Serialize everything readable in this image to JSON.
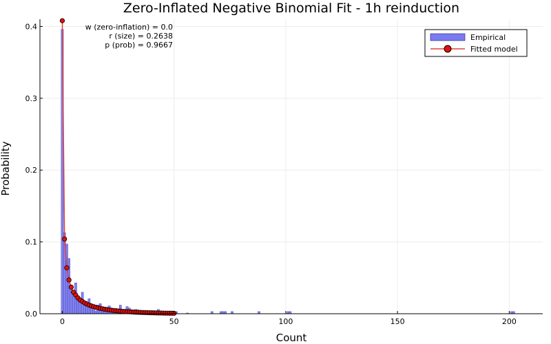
{
  "colors": {
    "empirical_fill": "#7b7bf0",
    "empirical_stroke": "#3a3aa8",
    "fitted_line": "#e0403a",
    "fitted_marker": "#e8100a",
    "grid": "#ececec",
    "axis": "#000000"
  },
  "chart_data": {
    "type": "bar",
    "title": "Zero-Inflated Negative Binomial Fit - 1h reinduction",
    "xlabel": "Count",
    "ylabel": "Probability",
    "xlim": [
      -10,
      215
    ],
    "ylim": [
      0,
      0.41
    ],
    "x_ticks": [
      0,
      50,
      100,
      150,
      200
    ],
    "x_tick_labels": [
      "0",
      "50",
      "100",
      "150",
      "200"
    ],
    "y_ticks": [
      0,
      0.1,
      0.2,
      0.3,
      0.4
    ],
    "y_tick_labels": [
      "0.0",
      "0.1",
      "0.2",
      "0.3",
      "0.4"
    ],
    "grid": true,
    "legend_position": "top-right",
    "annotation": [
      "w (zero-inflation) = 0.0",
      "r (size) = 0.2638",
      "p (prob) = 0.9667"
    ],
    "series": [
      {
        "name": "Empirical",
        "kind": "histogram",
        "x": [
          0,
          1,
          2,
          3,
          4,
          5,
          6,
          7,
          8,
          9,
          10,
          11,
          12,
          13,
          14,
          15,
          16,
          17,
          18,
          19,
          20,
          21,
          22,
          23,
          24,
          25,
          26,
          27,
          28,
          29,
          30,
          31,
          32,
          33,
          34,
          35,
          36,
          37,
          38,
          39,
          40,
          41,
          42,
          43,
          44,
          45,
          46,
          47,
          48,
          50,
          51,
          56,
          67,
          71,
          72,
          73,
          76,
          88,
          101,
          102,
          201,
          202
        ],
        "values": [
          0.396,
          0.113,
          0.097,
          0.077,
          0.036,
          0.031,
          0.043,
          0.025,
          0.022,
          0.03,
          0.014,
          0.014,
          0.021,
          0.008,
          0.006,
          0.004,
          0.012,
          0.014,
          0.007,
          0.008,
          0.009,
          0.011,
          0.006,
          0.005,
          0.005,
          0.006,
          0.012,
          0.004,
          0.003,
          0.01,
          0.008,
          0.005,
          0.003,
          0.006,
          0.004,
          0.002,
          0.003,
          0.004,
          0.002,
          0.002,
          0.002,
          0.003,
          0.004,
          0.006,
          0.002,
          0.002,
          0.002,
          0.002,
          0.003,
          0.001,
          0.003,
          0.001,
          0.003,
          0.003,
          0.003,
          0.003,
          0.003,
          0.003,
          0.003,
          0.003,
          0.003,
          0.003
        ]
      },
      {
        "name": "Fitted model",
        "kind": "line-markers",
        "x": [
          0,
          1,
          2,
          3,
          4,
          5,
          6,
          7,
          8,
          9,
          10,
          11,
          12,
          13,
          14,
          15,
          16,
          17,
          18,
          19,
          20,
          21,
          22,
          23,
          24,
          25,
          26,
          27,
          28,
          29,
          30,
          31,
          32,
          33,
          34,
          35,
          36,
          37,
          38,
          39,
          40,
          41,
          42,
          43,
          44,
          45,
          46,
          47,
          48,
          49,
          50
        ],
        "values": [
          0.408,
          0.104,
          0.064,
          0.047,
          0.037,
          0.03,
          0.026,
          0.022,
          0.019,
          0.017,
          0.015,
          0.0135,
          0.012,
          0.0109,
          0.0099,
          0.009,
          0.0082,
          0.0075,
          0.0069,
          0.0063,
          0.0058,
          0.0053,
          0.0049,
          0.0045,
          0.0042,
          0.0039,
          0.0036,
          0.0033,
          0.0031,
          0.0029,
          0.0027,
          0.0025,
          0.0023,
          0.0021,
          0.002,
          0.0018,
          0.0017,
          0.0016,
          0.0015,
          0.0014,
          0.0013,
          0.0012,
          0.0011,
          0.001,
          0.001,
          0.0009,
          0.0008,
          0.0008,
          0.0007,
          0.0007,
          0.0006
        ]
      }
    ]
  }
}
